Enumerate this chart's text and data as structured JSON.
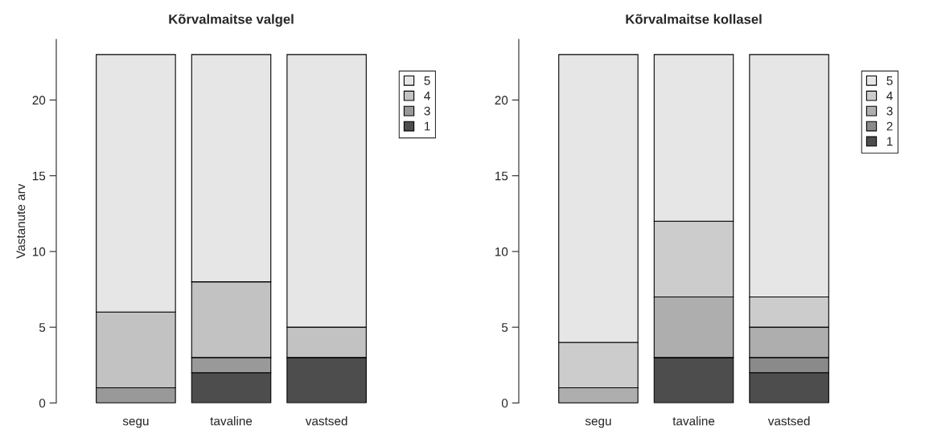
{
  "chart_data": [
    {
      "type": "bar",
      "title": "Kõrvalmaitse valgel",
      "ylabel": "Vastanute arv",
      "categories": [
        "segu",
        "tavaline",
        "vastsed"
      ],
      "stacked": true,
      "ylim": [
        0,
        24
      ],
      "yticks": [
        0,
        5,
        10,
        15,
        20
      ],
      "grid": false,
      "legend": "top right",
      "series": [
        {
          "name": "1",
          "color": "#4d4d4d",
          "values": [
            0,
            2,
            3
          ]
        },
        {
          "name": "3",
          "color": "#999999",
          "values": [
            1,
            1,
            0
          ]
        },
        {
          "name": "4",
          "color": "#c2c2c2",
          "values": [
            5,
            5,
            2
          ]
        },
        {
          "name": "5",
          "color": "#e6e6e6",
          "values": [
            17,
            15,
            18
          ]
        }
      ]
    },
    {
      "type": "bar",
      "title": "Kõrvalmaitse kollasel",
      "categories": [
        "segu",
        "tavaline",
        "vastsed"
      ],
      "stacked": true,
      "ylim": [
        0,
        24
      ],
      "yticks": [
        0,
        5,
        10,
        15,
        20
      ],
      "grid": false,
      "legend": "top right",
      "series": [
        {
          "name": "1",
          "color": "#4d4d4d",
          "values": [
            0,
            3,
            2
          ]
        },
        {
          "name": "2",
          "color": "#8a8a8a",
          "values": [
            0,
            0,
            1
          ]
        },
        {
          "name": "3",
          "color": "#aeaeae",
          "values": [
            1,
            4,
            2
          ]
        },
        {
          "name": "4",
          "color": "#cccccc",
          "values": [
            3,
            5,
            2
          ]
        },
        {
          "name": "5",
          "color": "#e6e6e6",
          "values": [
            19,
            11,
            16
          ]
        }
      ]
    }
  ]
}
